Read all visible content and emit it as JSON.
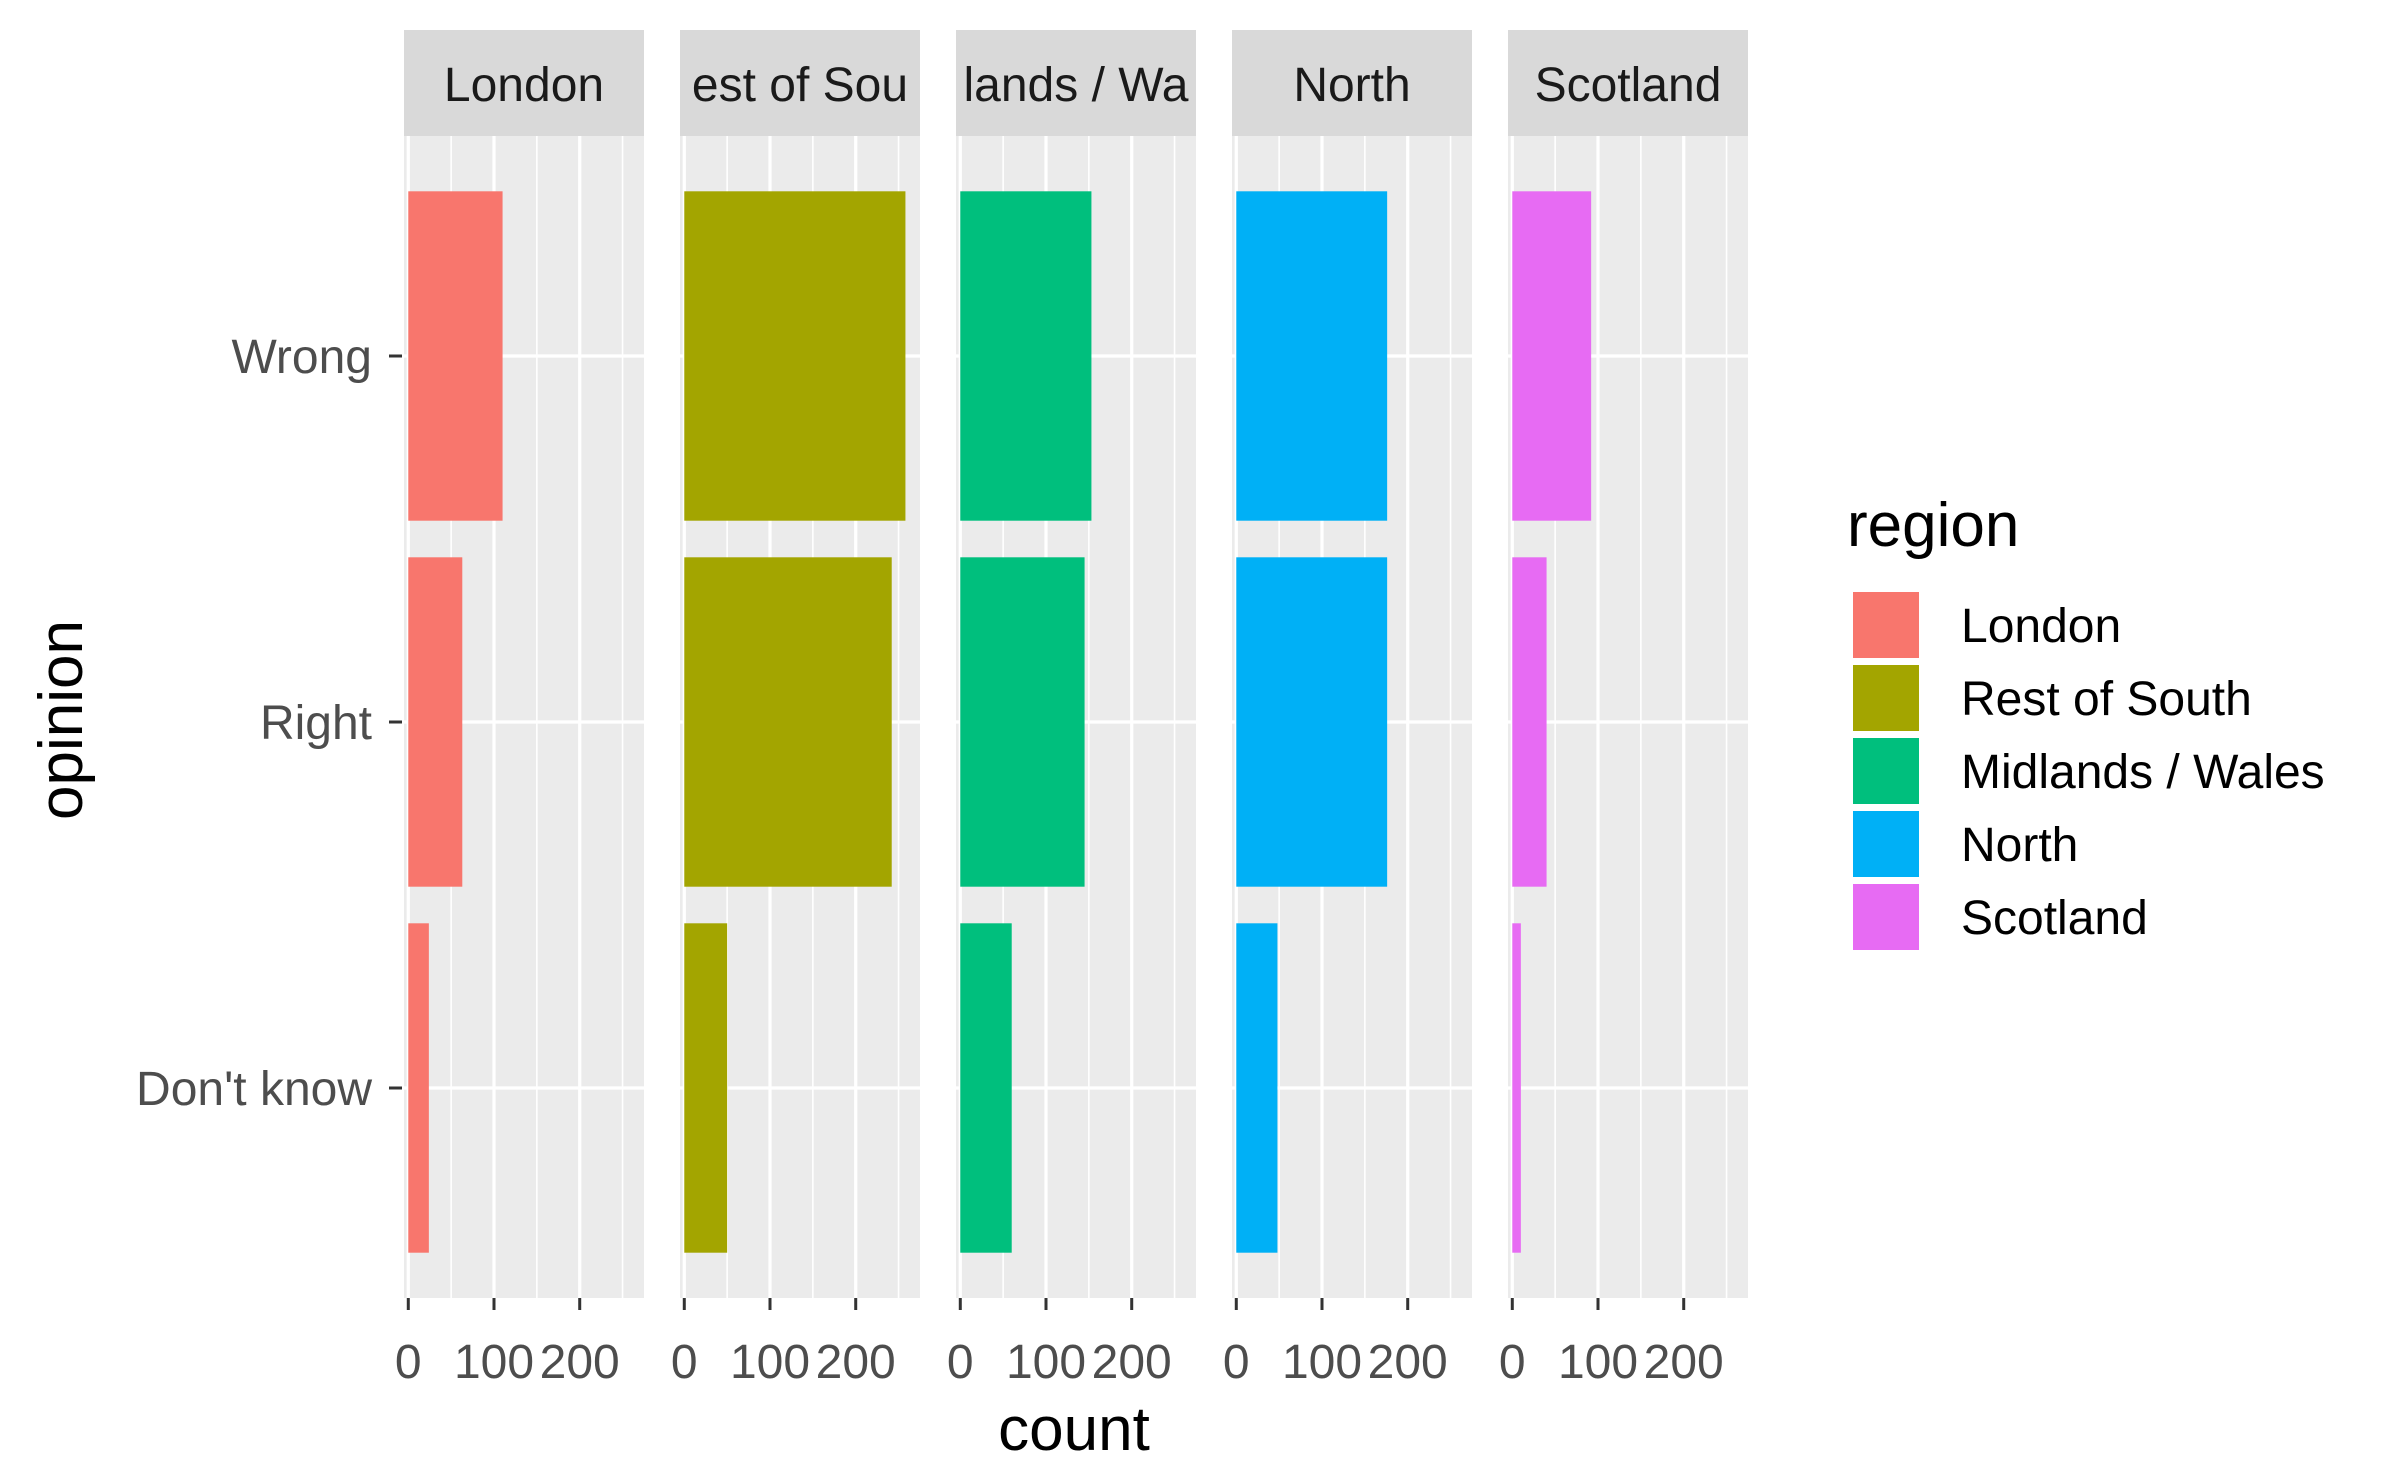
{
  "chart_data": {
    "type": "bar",
    "orientation": "horizontal",
    "facet_by": "region",
    "categories": [
      "Wrong",
      "Right",
      "Don't know"
    ],
    "panels": [
      {
        "name": "London",
        "strip_label": "London",
        "values": [
          110,
          63,
          24
        ]
      },
      {
        "name": "Rest of South",
        "strip_label": "est of Sou",
        "values": [
          258,
          242,
          50
        ]
      },
      {
        "name": "Midlands / Wales",
        "strip_label": "lands / Wa",
        "values": [
          153,
          145,
          60
        ]
      },
      {
        "name": "North",
        "strip_label": "North",
        "values": [
          176,
          176,
          48
        ]
      },
      {
        "name": "Scotland",
        "strip_label": "Scotland",
        "values": [
          92,
          40,
          10
        ]
      }
    ],
    "series_colors": {
      "London": "#F8766D",
      "Rest of South": "#A3A500",
      "Midlands / Wales": "#00BF7D",
      "North": "#00B0F6",
      "Scotland": "#E76BF3"
    },
    "xlim": [
      -5,
      275
    ],
    "xticks": [
      0,
      100,
      200
    ],
    "xtick_labels": [
      "0",
      "100",
      "200"
    ],
    "xlabel": "count",
    "ylabel": "opinion",
    "legend": {
      "title": "region",
      "items": [
        "London",
        "Rest of South",
        "Midlands / Wales",
        "North",
        "Scotland"
      ],
      "position": "right"
    },
    "grid": true
  }
}
